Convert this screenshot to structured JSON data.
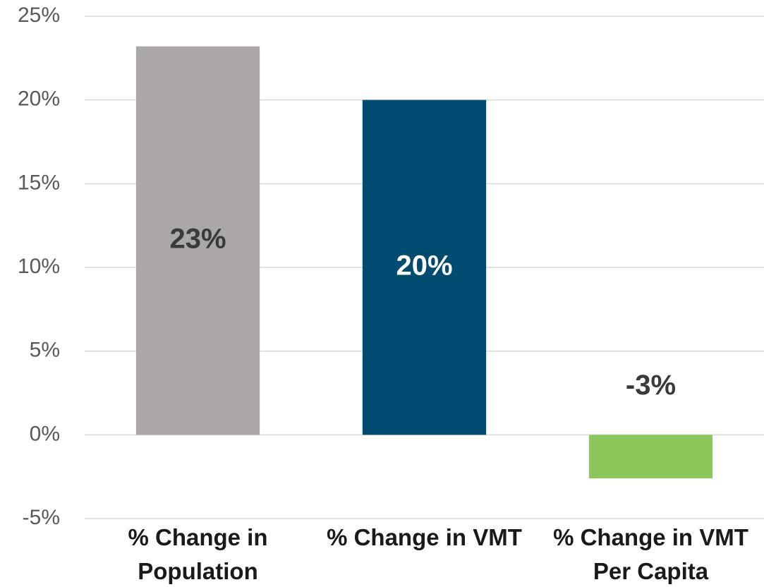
{
  "chart_data": {
    "type": "bar",
    "categories": [
      "% Change in Population",
      "% Change in VMT",
      "% Change in VMT Per Capita"
    ],
    "values": [
      23.2,
      20,
      -2.6
    ],
    "value_labels": [
      "23%",
      "20%",
      "-3%"
    ],
    "colors": [
      "#aba7a6",
      "#004c70",
      "#8bc75a"
    ],
    "label_colors": [
      "#3a3a3a",
      "#ffffff",
      "#3a3a3a"
    ],
    "ylim": [
      -5,
      25
    ],
    "yticks": [
      {
        "value": -5,
        "label": "-5%"
      },
      {
        "value": 0,
        "label": "0%"
      },
      {
        "value": 5,
        "label": "5%"
      },
      {
        "value": 10,
        "label": "10%"
      },
      {
        "value": 15,
        "label": "15%"
      },
      {
        "value": 20,
        "label": "20%"
      },
      {
        "value": 25,
        "label": "25%"
      }
    ],
    "grid": true
  }
}
